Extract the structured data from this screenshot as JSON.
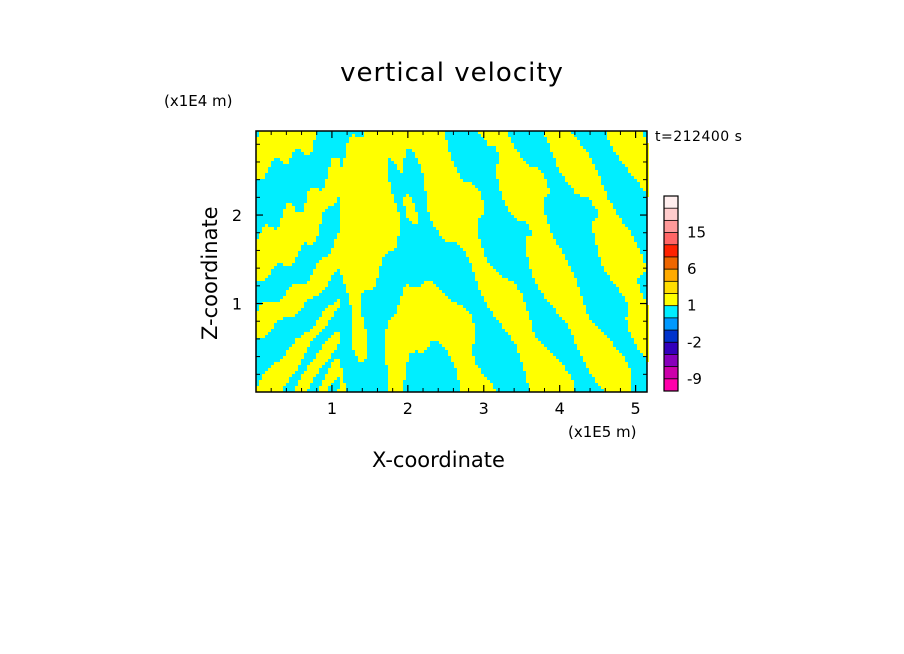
{
  "chart_data": {
    "type": "heatmap",
    "title": "vertical velocity",
    "xlabel": "X-coordinate",
    "ylabel": "Z-coordinate",
    "x_unit": "(x1E5 m)",
    "y_unit": "(x1E4 m)",
    "time_label": "t=212400 s",
    "xlim": [
      0,
      5.15
    ],
    "ylim": [
      0,
      2.95
    ],
    "x_ticks": [
      "1",
      "2",
      "3",
      "4",
      "5"
    ],
    "x_tick_values": [
      1,
      2,
      3,
      4,
      5
    ],
    "y_ticks": [
      "1",
      "2"
    ],
    "y_tick_values": [
      1,
      2
    ],
    "field_colors": {
      "positive": "#ffff00",
      "negative": "#00eeff"
    },
    "colorbar": {
      "levels": [
        {
          "value": -12,
          "color": "#ff00aa"
        },
        {
          "value": -9,
          "color": "#cc00aa"
        },
        {
          "value": -6,
          "color": "#8800bb"
        },
        {
          "value": -4,
          "color": "#3300bb"
        },
        {
          "value": -2,
          "color": "#0033cc"
        },
        {
          "value": -1,
          "color": "#0099ff"
        },
        {
          "value": 0,
          "color": "#00eeff"
        },
        {
          "value": 1,
          "color": "#ffff00"
        },
        {
          "value": 2,
          "color": "#ffdd00"
        },
        {
          "value": 4,
          "color": "#ffaa00"
        },
        {
          "value": 6,
          "color": "#ee6600"
        },
        {
          "value": 9,
          "color": "#ff2200"
        },
        {
          "value": 12,
          "color": "#ff6666"
        },
        {
          "value": 15,
          "color": "#ff9999"
        },
        {
          "value": 18,
          "color": "#ffcccc"
        },
        {
          "value": 21,
          "color": "#ffeeee"
        }
      ],
      "labels": [
        "15",
        "6",
        "1",
        "-2",
        "-9"
      ]
    }
  }
}
